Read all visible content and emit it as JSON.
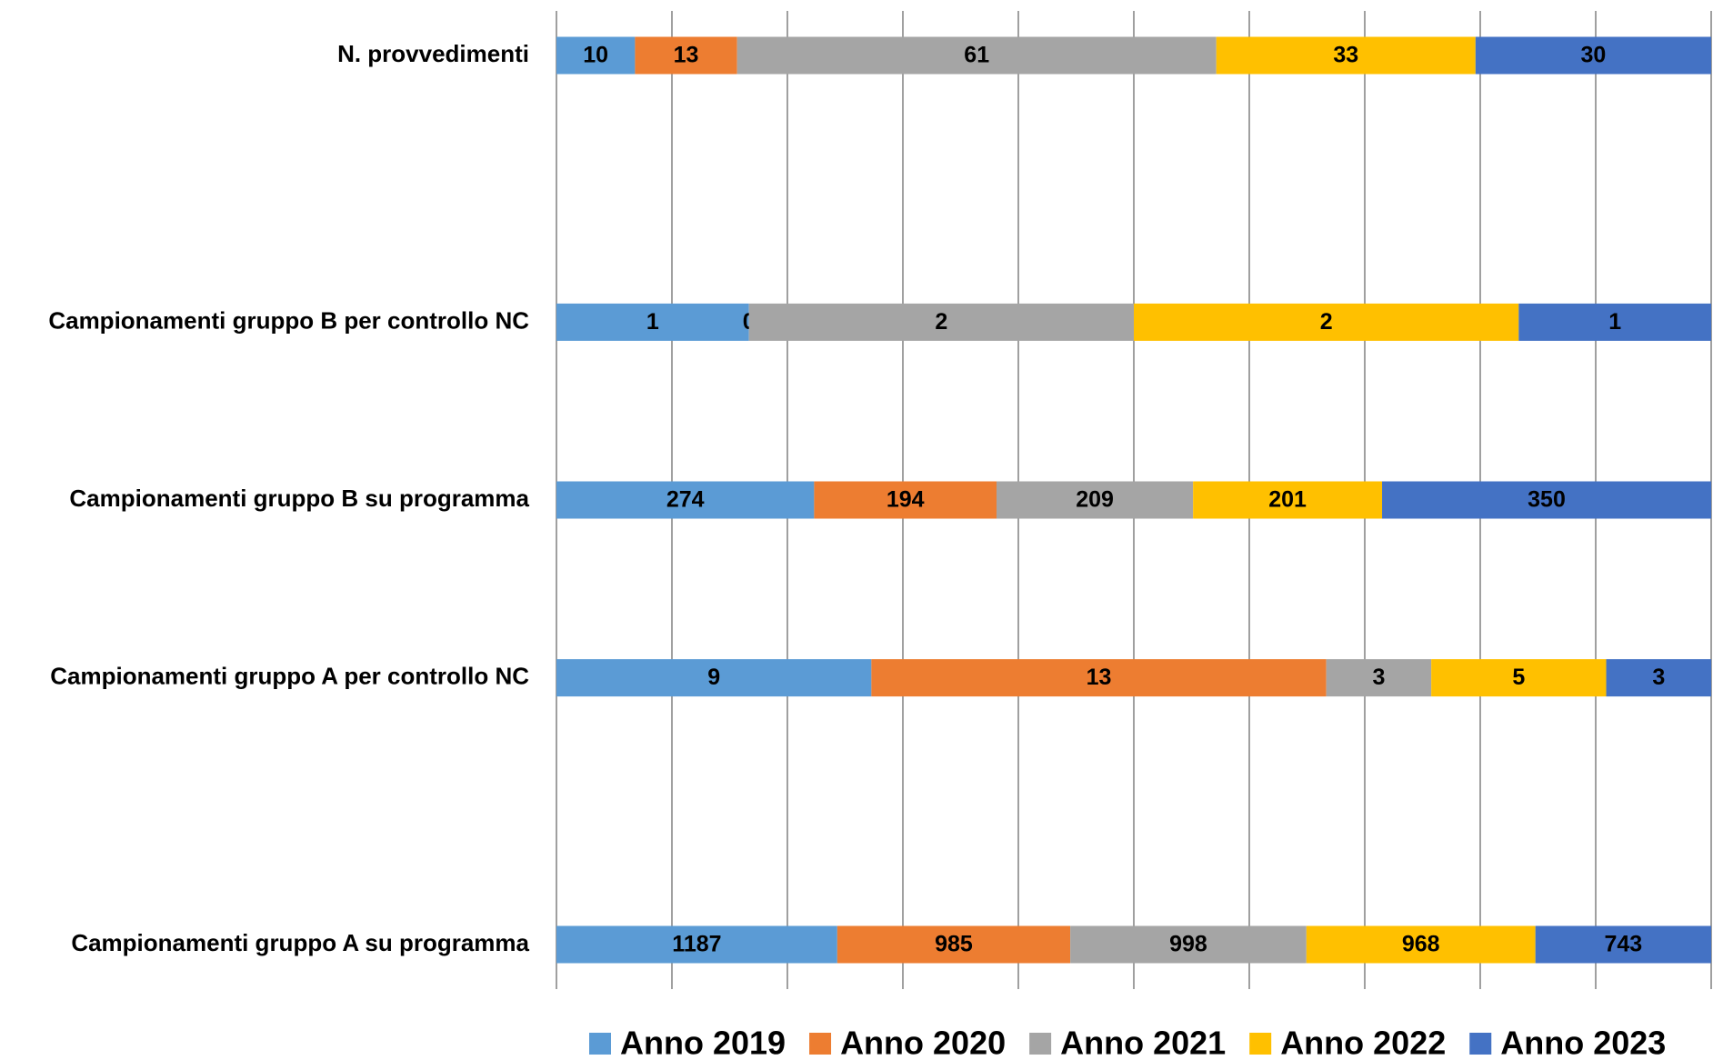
{
  "chart_data": {
    "type": "bar",
    "orientation": "horizontal",
    "stacked": "percent",
    "categories": [
      "N. provvedimenti",
      null,
      null,
      "Campionamenti gruppo B per controllo NC",
      null,
      "Campionamenti gruppo B su programma",
      null,
      "Campionamenti gruppo A per controllo NC",
      null,
      null,
      "Campionamenti gruppo A su programma"
    ],
    "series": [
      {
        "name": "Anno 2019",
        "color": "#5b9bd5",
        "values": [
          10,
          null,
          null,
          1,
          null,
          274,
          null,
          9,
          null,
          null,
          1187
        ]
      },
      {
        "name": "Anno 2020",
        "color": "#ed7d31",
        "values": [
          13,
          null,
          null,
          0,
          null,
          194,
          null,
          13,
          null,
          null,
          985
        ]
      },
      {
        "name": "Anno 2021",
        "color": "#a5a5a5",
        "values": [
          61,
          null,
          null,
          2,
          null,
          209,
          null,
          3,
          null,
          null,
          998
        ]
      },
      {
        "name": "Anno 2022",
        "color": "#ffc000",
        "values": [
          33,
          null,
          null,
          2,
          null,
          201,
          null,
          5,
          null,
          null,
          968
        ]
      },
      {
        "name": "Anno 2023",
        "color": "#4472c4",
        "values": [
          30,
          null,
          null,
          1,
          null,
          350,
          null,
          3,
          null,
          null,
          743
        ]
      }
    ],
    "xlim": [
      0,
      100
    ],
    "xticks": [
      0,
      10,
      20,
      30,
      40,
      50,
      60,
      70,
      80,
      90,
      100
    ],
    "grid": true,
    "legend": "bottom"
  }
}
